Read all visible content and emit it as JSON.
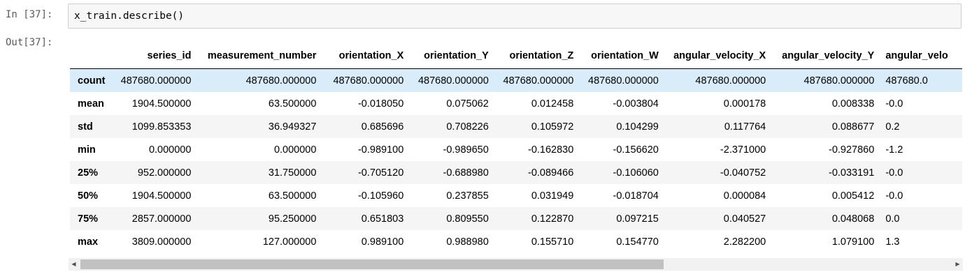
{
  "cell": {
    "in_prompt": "In [37]:",
    "out_prompt": "Out[37]:",
    "code": "x_train.describe()"
  },
  "table": {
    "columns": [
      "series_id",
      "measurement_number",
      "orientation_X",
      "orientation_Y",
      "orientation_Z",
      "orientation_W",
      "angular_velocity_X",
      "angular_velocity_Y",
      "angular_velo"
    ],
    "rows": [
      {
        "label": "count",
        "values": [
          "487680.000000",
          "487680.000000",
          "487680.000000",
          "487680.000000",
          "487680.000000",
          "487680.000000",
          "487680.000000",
          "487680.000000",
          "487680.0"
        ]
      },
      {
        "label": "mean",
        "values": [
          "1904.500000",
          "63.500000",
          "-0.018050",
          "0.075062",
          "0.012458",
          "-0.003804",
          "0.000178",
          "0.008338",
          "-0.0"
        ]
      },
      {
        "label": "std",
        "values": [
          "1099.853353",
          "36.949327",
          "0.685696",
          "0.708226",
          "0.105972",
          "0.104299",
          "0.117764",
          "0.088677",
          "0.2"
        ]
      },
      {
        "label": "min",
        "values": [
          "0.000000",
          "0.000000",
          "-0.989100",
          "-0.989650",
          "-0.162830",
          "-0.156620",
          "-2.371000",
          "-0.927860",
          "-1.2"
        ]
      },
      {
        "label": "25%",
        "values": [
          "952.000000",
          "31.750000",
          "-0.705120",
          "-0.688980",
          "-0.089466",
          "-0.106060",
          "-0.040752",
          "-0.033191",
          "-0.0"
        ]
      },
      {
        "label": "50%",
        "values": [
          "1904.500000",
          "63.500000",
          "-0.105960",
          "0.237855",
          "0.031949",
          "-0.018704",
          "0.000084",
          "0.005412",
          "-0.0"
        ]
      },
      {
        "label": "75%",
        "values": [
          "2857.000000",
          "95.250000",
          "0.651803",
          "0.809550",
          "0.122870",
          "0.097215",
          "0.040527",
          "0.048068",
          "0.0"
        ]
      },
      {
        "label": "max",
        "values": [
          "3809.000000",
          "127.000000",
          "0.989100",
          "0.988980",
          "0.155710",
          "0.154770",
          "2.282200",
          "1.079100",
          "1.3"
        ]
      }
    ],
    "highlighted_row": "count"
  },
  "scrollbar": {
    "left_arrow_icon": "triangle-left-icon",
    "right_arrow_icon": "triangle-right-icon",
    "thumb_fraction": 0.67
  }
}
